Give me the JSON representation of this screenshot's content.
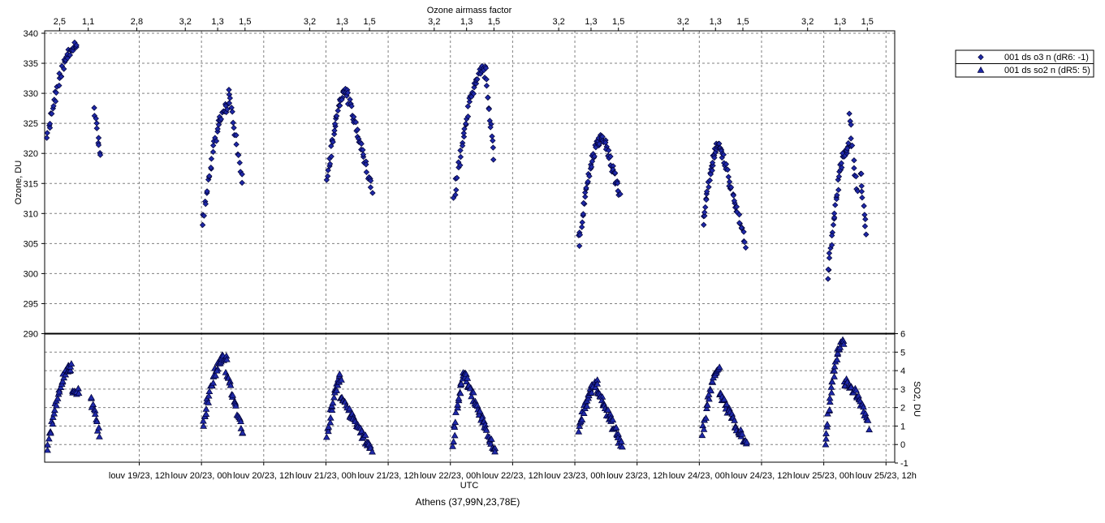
{
  "chart_data": {
    "type": "scatter",
    "top_axis_label": "Ozone airmass factor",
    "top_ticks": [
      {
        "t": 0.86,
        "label": "2,5"
      },
      {
        "t": 1.09,
        "label": "1,1"
      },
      {
        "t": 1.48,
        "label": "2,8"
      },
      {
        "t": 1.87,
        "label": "3,2"
      },
      {
        "t": 2.13,
        "label": "1,3"
      },
      {
        "t": 2.35,
        "label": "1,5"
      },
      {
        "t": 2.87,
        "label": "3,2"
      },
      {
        "t": 3.13,
        "label": "1,3"
      },
      {
        "t": 3.35,
        "label": "1,5"
      },
      {
        "t": 3.87,
        "label": "3,2"
      },
      {
        "t": 4.13,
        "label": "1,3"
      },
      {
        "t": 4.35,
        "label": "1,5"
      },
      {
        "t": 4.87,
        "label": "3,2"
      },
      {
        "t": 5.13,
        "label": "1,3"
      },
      {
        "t": 5.35,
        "label": "1,5"
      },
      {
        "t": 5.87,
        "label": "3,2"
      },
      {
        "t": 6.13,
        "label": "1,3"
      },
      {
        "t": 6.35,
        "label": "1,5"
      },
      {
        "t": 6.87,
        "label": "3,2"
      },
      {
        "t": 7.13,
        "label": "1,3"
      },
      {
        "t": 7.35,
        "label": "1,5"
      }
    ],
    "x_axis_label": "UTC",
    "x_ticks": [
      {
        "t": 1.5,
        "label": "louv 19/23, 12h"
      },
      {
        "t": 2.0,
        "label": "louv 20/23, 00h"
      },
      {
        "t": 2.5,
        "label": "louv 20/23, 12h"
      },
      {
        "t": 3.0,
        "label": "louv 21/23, 00h"
      },
      {
        "t": 3.5,
        "label": "louv 21/23, 12h"
      },
      {
        "t": 4.0,
        "label": "louv 22/23, 00h"
      },
      {
        "t": 4.5,
        "label": "louv 22/23, 12h"
      },
      {
        "t": 5.0,
        "label": "louv 23/23, 00h"
      },
      {
        "t": 5.5,
        "label": "louv 23/23, 12h"
      },
      {
        "t": 6.0,
        "label": "louv 24/23, 00h"
      },
      {
        "t": 6.5,
        "label": "louv 24/23, 12h"
      },
      {
        "t": 7.0,
        "label": "louv 25/23, 00h"
      },
      {
        "t": 7.5,
        "label": "louv 25/23, 12h"
      }
    ],
    "x_range_days": [
      0.74,
      7.57
    ],
    "ozone_axis": {
      "label": "Ozone, DU",
      "range": [
        290,
        340
      ],
      "ticks": [
        340,
        335,
        330,
        325,
        320,
        315,
        310,
        305,
        300,
        295,
        290
      ]
    },
    "so2_axis": {
      "label": "SO2, DU",
      "range": [
        -1,
        6
      ],
      "ticks": [
        6,
        5,
        4,
        3,
        2,
        1,
        0,
        -1
      ]
    },
    "legend": [
      {
        "marker": "diamond",
        "label": "001 ds o3  n (dR6: -1)"
      },
      {
        "marker": "triangle",
        "label": "001 ds so2 n (dR5: 5)"
      }
    ],
    "footer": "Athens (37,99N,23,78E)",
    "colors": {
      "marker_fill": "#1e28a8",
      "marker_stroke": "#000033",
      "footer": "#2e8b99",
      "grid": "#808080"
    },
    "ozone_segments": [
      {
        "t0": 0.76,
        "t1": 1.0,
        "v0": 323,
        "v1": 338.2,
        "n": 38,
        "seed": 11
      },
      {
        "t0": 1.14,
        "t1": 1.19,
        "v0": 328,
        "v1": 319,
        "n": 10,
        "seed": 12
      },
      {
        "t0": 2.01,
        "t1": 2.22,
        "v0": 308.5,
        "v1": 328,
        "n": 34,
        "seed": 13
      },
      {
        "t0": 2.22,
        "t1": 2.33,
        "v0": 331,
        "v1": 315,
        "n": 16,
        "seed": 14
      },
      {
        "t0": 3.01,
        "t1": 3.17,
        "v0": 316,
        "v1": 330.5,
        "n": 34,
        "seed": 21
      },
      {
        "t0": 3.17,
        "t1": 3.37,
        "v0": 330,
        "v1": 314,
        "n": 32,
        "seed": 22
      },
      {
        "t0": 4.03,
        "t1": 4.28,
        "v0": 313,
        "v1": 334.5,
        "n": 42,
        "seed": 31
      },
      {
        "t0": 4.28,
        "t1": 4.35,
        "v0": 333,
        "v1": 319.5,
        "n": 14,
        "seed": 32
      },
      {
        "t0": 5.03,
        "t1": 5.22,
        "v0": 305,
        "v1": 322.5,
        "n": 38,
        "seed": 41
      },
      {
        "t0": 5.22,
        "t1": 5.36,
        "v0": 323,
        "v1": 313.5,
        "n": 28,
        "seed": 42
      },
      {
        "t0": 6.03,
        "t1": 6.17,
        "v0": 308.5,
        "v1": 321.5,
        "n": 32,
        "seed": 51
      },
      {
        "t0": 6.17,
        "t1": 6.37,
        "v0": 321,
        "v1": 305,
        "n": 34,
        "seed": 52
      },
      {
        "t0": 7.03,
        "t1": 7.2,
        "v0": 299.5,
        "v1": 321,
        "n": 36,
        "seed": 61
      },
      {
        "t0": 7.2,
        "t1": 7.27,
        "v0": 327,
        "v1": 313,
        "n": 12,
        "seed": 62
      },
      {
        "t0": 7.29,
        "t1": 7.34,
        "v0": 317,
        "v1": 307,
        "n": 10,
        "seed": 63
      }
    ],
    "so2_segments": [
      {
        "t0": 0.76,
        "t1": 0.96,
        "v0": -0.2,
        "v1": 4.2,
        "n": 34,
        "seed": 71
      },
      {
        "t0": 0.96,
        "t1": 1.02,
        "v0": 3.0,
        "v1": 2.8,
        "n": 8,
        "seed": 72
      },
      {
        "t0": 1.11,
        "t1": 1.18,
        "v0": 2.6,
        "v1": 0.5,
        "n": 12,
        "seed": 73
      },
      {
        "t0": 2.01,
        "t1": 2.2,
        "v0": 1.1,
        "v1": 4.8,
        "n": 34,
        "seed": 74
      },
      {
        "t0": 2.2,
        "t1": 2.33,
        "v0": 4.0,
        "v1": 0.6,
        "n": 22,
        "seed": 75
      },
      {
        "t0": 3.01,
        "t1": 3.12,
        "v0": 0.5,
        "v1": 3.6,
        "n": 24,
        "seed": 76
      },
      {
        "t0": 3.12,
        "t1": 3.37,
        "v0": 2.6,
        "v1": -0.4,
        "n": 40,
        "seed": 77
      },
      {
        "t0": 4.02,
        "t1": 4.13,
        "v0": 0.0,
        "v1": 4.0,
        "n": 24,
        "seed": 78
      },
      {
        "t0": 4.13,
        "t1": 4.36,
        "v0": 3.5,
        "v1": -0.4,
        "n": 40,
        "seed": 79
      },
      {
        "t0": 5.03,
        "t1": 5.18,
        "v0": 0.8,
        "v1": 3.3,
        "n": 28,
        "seed": 80
      },
      {
        "t0": 5.18,
        "t1": 5.38,
        "v0": 3.0,
        "v1": -0.1,
        "n": 36,
        "seed": 81
      },
      {
        "t0": 6.02,
        "t1": 6.16,
        "v0": 0.6,
        "v1": 4.0,
        "n": 26,
        "seed": 82
      },
      {
        "t0": 6.16,
        "t1": 6.38,
        "v0": 2.8,
        "v1": 0.0,
        "n": 36,
        "seed": 83
      },
      {
        "t0": 7.01,
        "t1": 7.16,
        "v0": 0.1,
        "v1": 5.6,
        "n": 32,
        "seed": 84
      },
      {
        "t0": 7.16,
        "t1": 7.3,
        "v0": 3.5,
        "v1": 2.4,
        "n": 20,
        "seed": 85
      },
      {
        "t0": 7.3,
        "t1": 7.36,
        "v0": 2.2,
        "v1": 1.0,
        "n": 10,
        "seed": 86
      }
    ]
  }
}
